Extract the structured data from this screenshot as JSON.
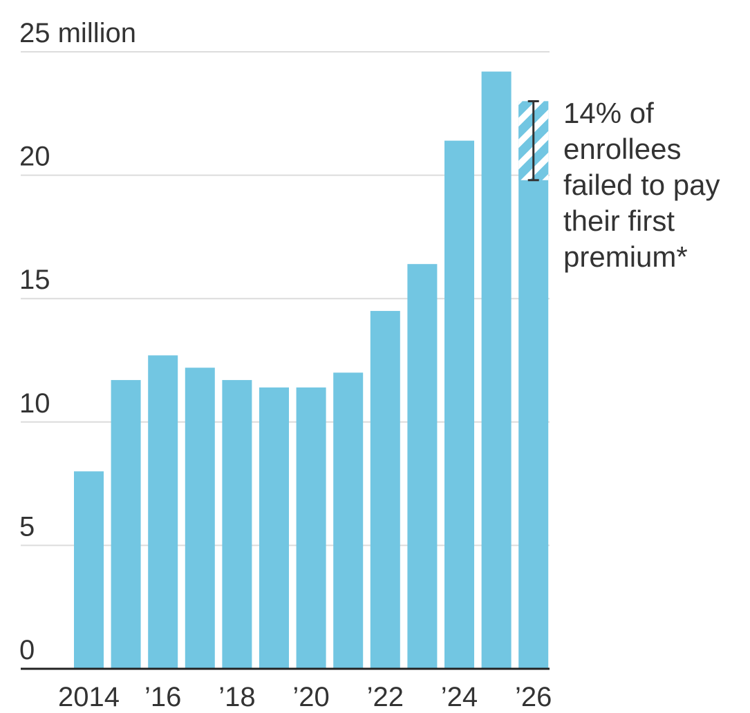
{
  "chart_data": {
    "type": "bar",
    "categories": [
      "2014",
      "2015",
      "2016",
      "2017",
      "2018",
      "2019",
      "2020",
      "2021",
      "2022",
      "2023",
      "2024",
      "2025",
      "2026"
    ],
    "values": [
      8.0,
      11.7,
      12.7,
      12.2,
      11.7,
      11.4,
      11.4,
      12.0,
      14.5,
      16.4,
      21.4,
      24.2,
      23.0
    ],
    "ylim": [
      0,
      25
    ],
    "y_ticks": [
      0,
      5,
      10,
      15,
      20,
      25
    ],
    "y_tick_labels": [
      "0",
      "5",
      "10",
      "15",
      "20",
      "25 million"
    ],
    "x_tick_labels": [
      {
        "category": "2014",
        "label": "2014"
      },
      {
        "category": "2016",
        "label": "’16"
      },
      {
        "category": "2018",
        "label": "’18"
      },
      {
        "category": "2020",
        "label": "’20"
      },
      {
        "category": "2022",
        "label": "’22"
      },
      {
        "category": "2024",
        "label": "’24"
      },
      {
        "category": "2026",
        "label": "’26"
      }
    ],
    "grid": true,
    "bar_color": "#72c6e2",
    "annotation": {
      "category": "2026",
      "hatched_range": [
        19.8,
        23.0
      ],
      "lines": [
        "14% of",
        "enrollees",
        "failed to pay",
        "their first",
        "premium*"
      ]
    }
  }
}
